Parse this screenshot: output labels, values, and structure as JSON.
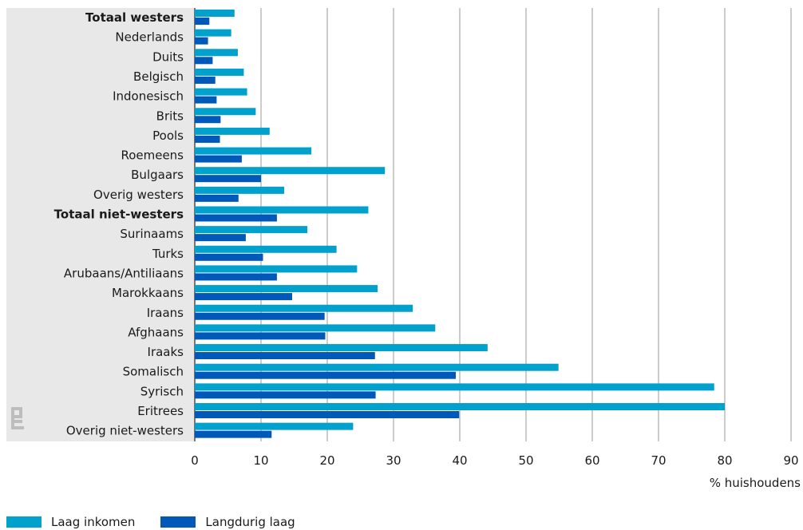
{
  "chart_data": {
    "type": "bar",
    "orientation": "horizontal",
    "categories": [
      "Totaal westers",
      "Nederlands",
      "Duits",
      "Belgisch",
      "Indonesisch",
      "Brits",
      "Pools",
      "Roemeens",
      "Bulgaars",
      "Overig westers",
      "Totaal niet-westers",
      "Surinaams",
      "Turks",
      "Arubaans/Antiliaans",
      "Marokkaans",
      "Iraans",
      "Afghaans",
      "Iraaks",
      "Somalisch",
      "Syrisch",
      "Eritrees",
      "Overig niet-westers"
    ],
    "bold_categories": [
      "Totaal westers",
      "Totaal niet-westers"
    ],
    "series": [
      {
        "name": "Laag inkomen",
        "color": "#00a1cd",
        "values": [
          6.0,
          5.5,
          6.5,
          7.4,
          7.9,
          9.2,
          11.3,
          17.6,
          28.7,
          13.5,
          26.2,
          17.0,
          21.4,
          24.5,
          27.6,
          32.9,
          36.3,
          44.2,
          54.9,
          78.4,
          80.0,
          23.9
        ]
      },
      {
        "name": "Langdurig laag",
        "color": "#0058b8",
        "values": [
          2.2,
          2.0,
          2.7,
          3.1,
          3.3,
          3.9,
          3.8,
          7.1,
          10.0,
          6.6,
          12.4,
          7.7,
          10.3,
          12.4,
          14.7,
          19.6,
          19.7,
          27.2,
          39.4,
          27.3,
          39.9,
          11.6
        ]
      }
    ],
    "xticks": [
      "0",
      "10",
      "20",
      "30",
      "40",
      "50",
      "60",
      "70",
      "80",
      "90"
    ],
    "xlim": [
      0,
      90
    ],
    "xlabel": "% huishoudens",
    "grid": true,
    "legend_position": "bottom-left"
  }
}
